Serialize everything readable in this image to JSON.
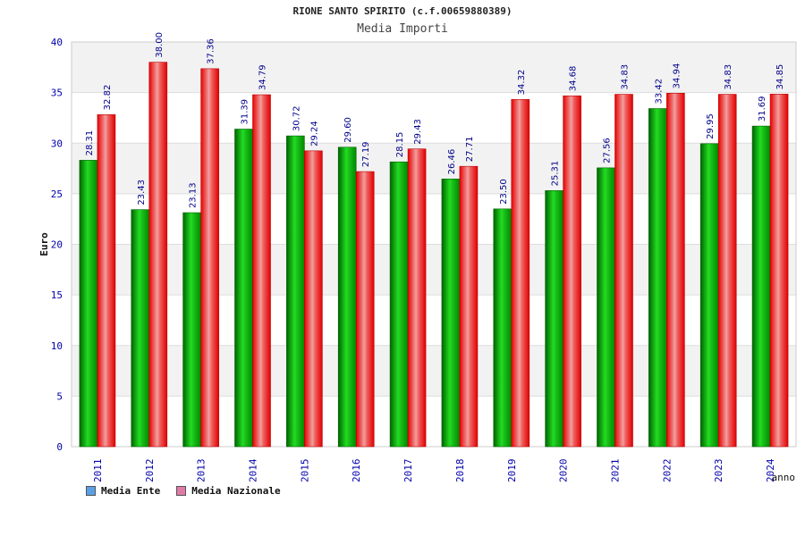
{
  "title": "RIONE SANTO SPIRITO (c.f.00659880389)",
  "subtitle": "Media Importi",
  "legend": {
    "ente_label": "Media Ente",
    "ente_color": "#5aa0e6",
    "nazionale_label": "Media Nazionale",
    "nazionale_color": "#e07aa8"
  },
  "chart_data": {
    "type": "bar",
    "title": "RIONE SANTO SPIRITO (c.f.00659880389)",
    "subtitle": "Media Importi",
    "xlabel": "anno",
    "ylabel": "Euro",
    "ylim": [
      0,
      40
    ],
    "yticks": [
      0,
      5,
      10,
      15,
      20,
      25,
      30,
      35,
      40
    ],
    "grid": true,
    "legend_position": "bottom-left",
    "categories": [
      "2011",
      "2012",
      "2013",
      "2014",
      "2015",
      "2016",
      "2017",
      "2018",
      "2019",
      "2020",
      "2021",
      "2022",
      "2023",
      "2024"
    ],
    "series": [
      {
        "name": "Media Ente",
        "color": "#00b000",
        "values": [
          28.31,
          23.43,
          23.13,
          31.39,
          30.72,
          29.6,
          28.15,
          26.46,
          23.5,
          25.31,
          27.56,
          33.42,
          29.95,
          31.69
        ],
        "labels": [
          "28.31",
          "23.43",
          "23.13",
          "31.39",
          "30.72",
          "29.60",
          "28.15",
          "26.46",
          "23.50",
          "25.31",
          "27.56",
          "33.42",
          "29.95",
          "31.69"
        ]
      },
      {
        "name": "Media Nazionale",
        "color": "#ff0000",
        "values": [
          32.82,
          38.0,
          37.36,
          34.79,
          29.24,
          27.19,
          29.43,
          27.71,
          34.32,
          34.68,
          34.83,
          34.94,
          34.83,
          34.85
        ],
        "labels": [
          "32.82",
          "38.00",
          "37.36",
          "34.79",
          "29.24",
          "27.19",
          "29.43",
          "27.71",
          "34.32",
          "34.68",
          "34.83",
          "34.94",
          "34.83",
          "34.85"
        ]
      }
    ]
  }
}
